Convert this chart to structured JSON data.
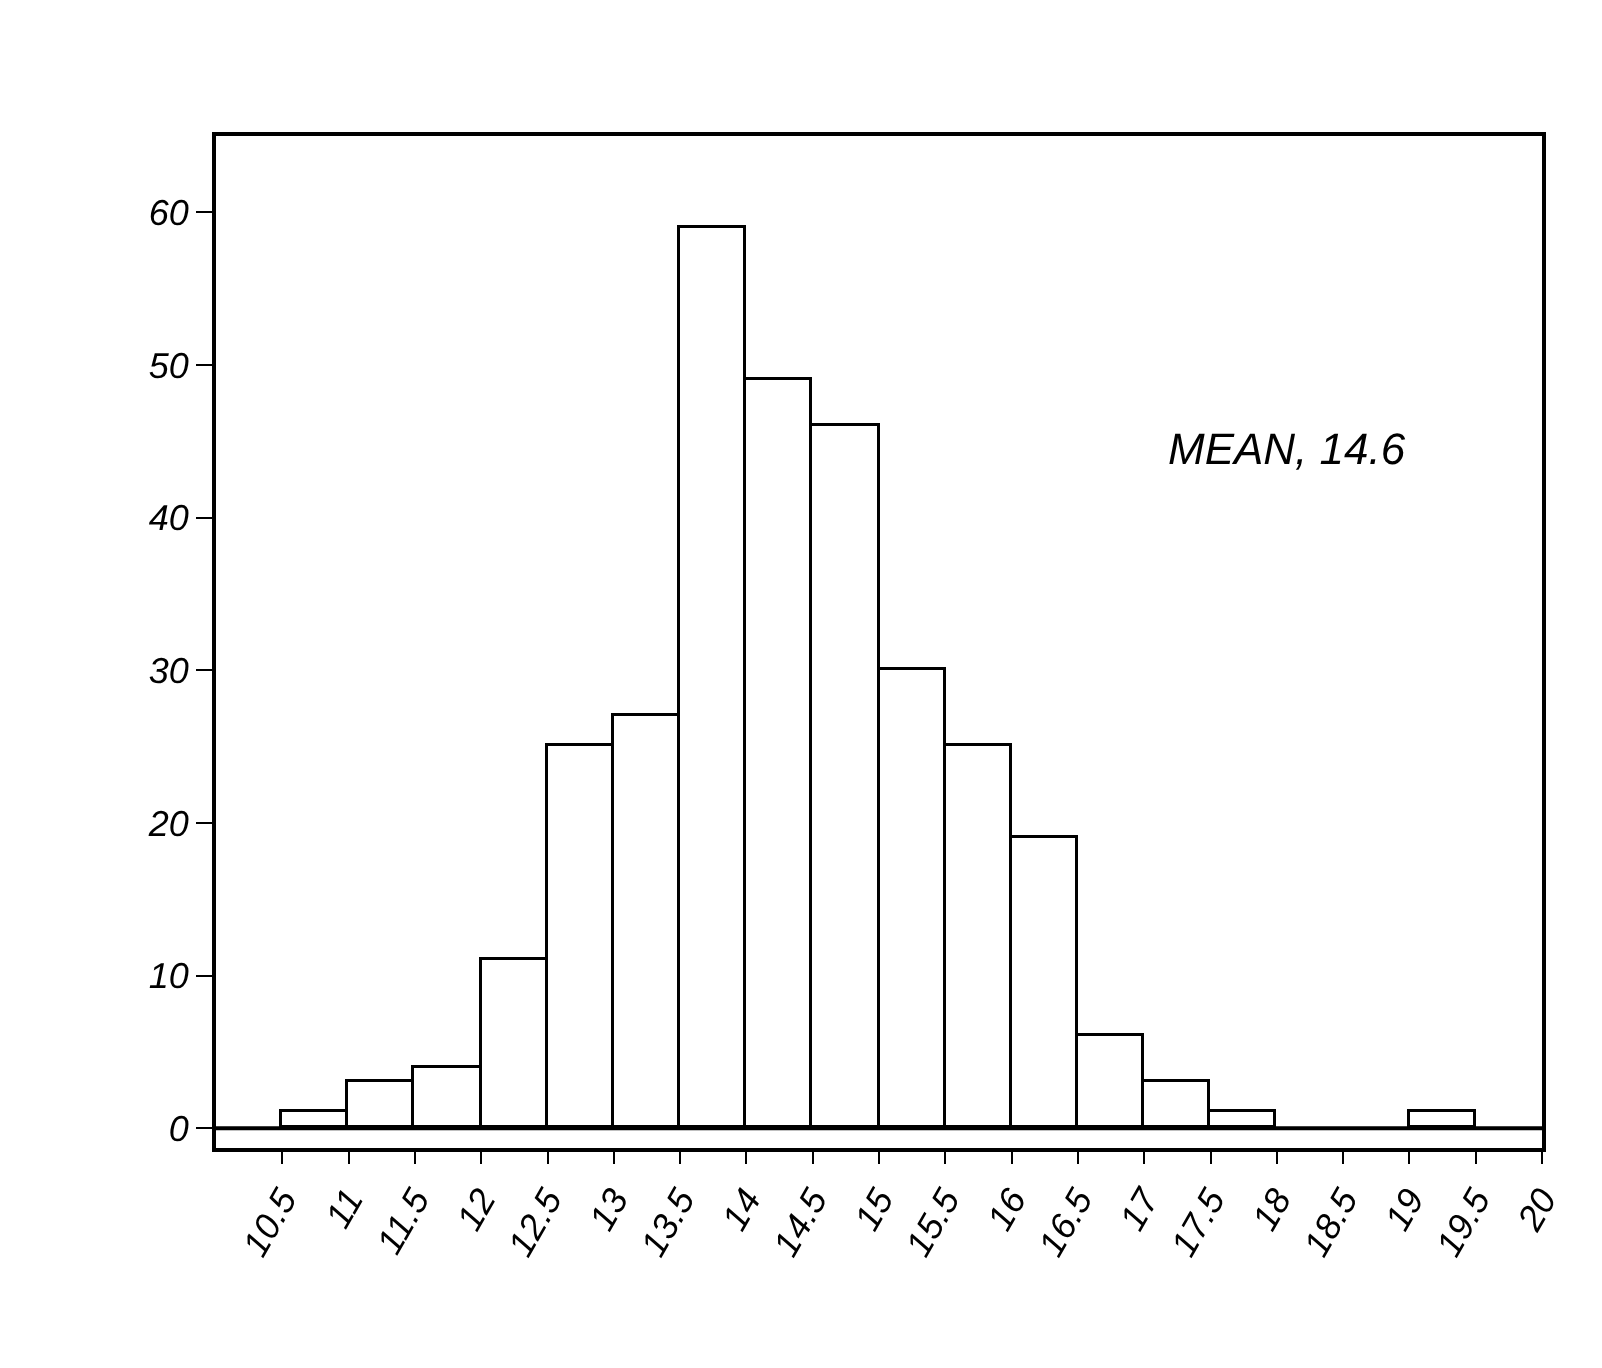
{
  "chart_data": {
    "type": "histogram",
    "bins": [
      10,
      10.5,
      11,
      11.5,
      12,
      12.5,
      13,
      13.5,
      14,
      14.5,
      15,
      15.5,
      16,
      16.5,
      17,
      17.5,
      18,
      18.5,
      19,
      19.5,
      20
    ],
    "values": [
      0,
      1,
      3,
      4,
      11,
      25,
      27,
      59,
      49,
      46,
      30,
      25,
      19,
      6,
      3,
      1,
      0,
      0,
      1,
      0
    ],
    "color": "#ffffff",
    "xlim": [
      10,
      20
    ],
    "ylim": [
      -1.3,
      65
    ],
    "xticks": [
      10.5,
      11,
      11.5,
      12,
      12.5,
      13,
      13.5,
      14,
      14.5,
      15,
      15.5,
      16,
      16.5,
      17,
      17.5,
      18,
      18.5,
      19,
      19.5,
      20
    ],
    "yticks": [
      0,
      10,
      20,
      30,
      40,
      50,
      60
    ],
    "annotations": [
      "MEAN, 14.6"
    ],
    "ref_lines": [
      {
        "axis": "y",
        "value": 0,
        "color": "#000000"
      }
    ]
  }
}
